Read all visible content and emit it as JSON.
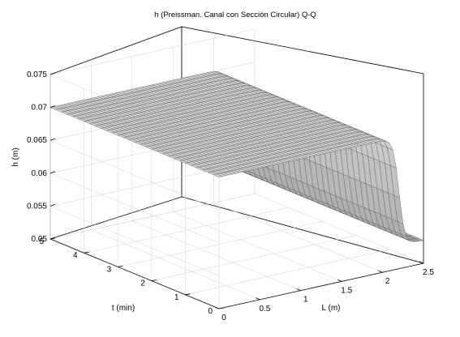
{
  "chart_data": {
    "type": "surface",
    "title": "h (Preissman. Canal con Sección Circular) Q-Q",
    "xlabel": "L (m)",
    "ylabel": "t (min)",
    "zlabel": "h (m)",
    "xlim": [
      0,
      2.5
    ],
    "ylim": [
      0,
      5
    ],
    "zlim": [
      0.05,
      0.075
    ],
    "xticks": [
      "0",
      "0.5",
      "1",
      "1.5",
      "2",
      "2.5"
    ],
    "yticks": [
      "0",
      "1",
      "2",
      "3",
      "4",
      "5"
    ],
    "zticks": [
      "0.05",
      "0.055",
      "0.06",
      "0.065",
      "0.07",
      "0.075"
    ],
    "grid": true,
    "colormap": "gray",
    "surface": {
      "description_series": [
        {
          "t": 0,
          "h_upstream": 0.07,
          "h_downstream": 0.0535
        },
        {
          "t": 5,
          "h_upstream": 0.07,
          "h_downstream": 0.0535
        }
      ],
      "front_position_L": 2.2,
      "h_max": 0.07,
      "h_min": 0.0535
    }
  }
}
